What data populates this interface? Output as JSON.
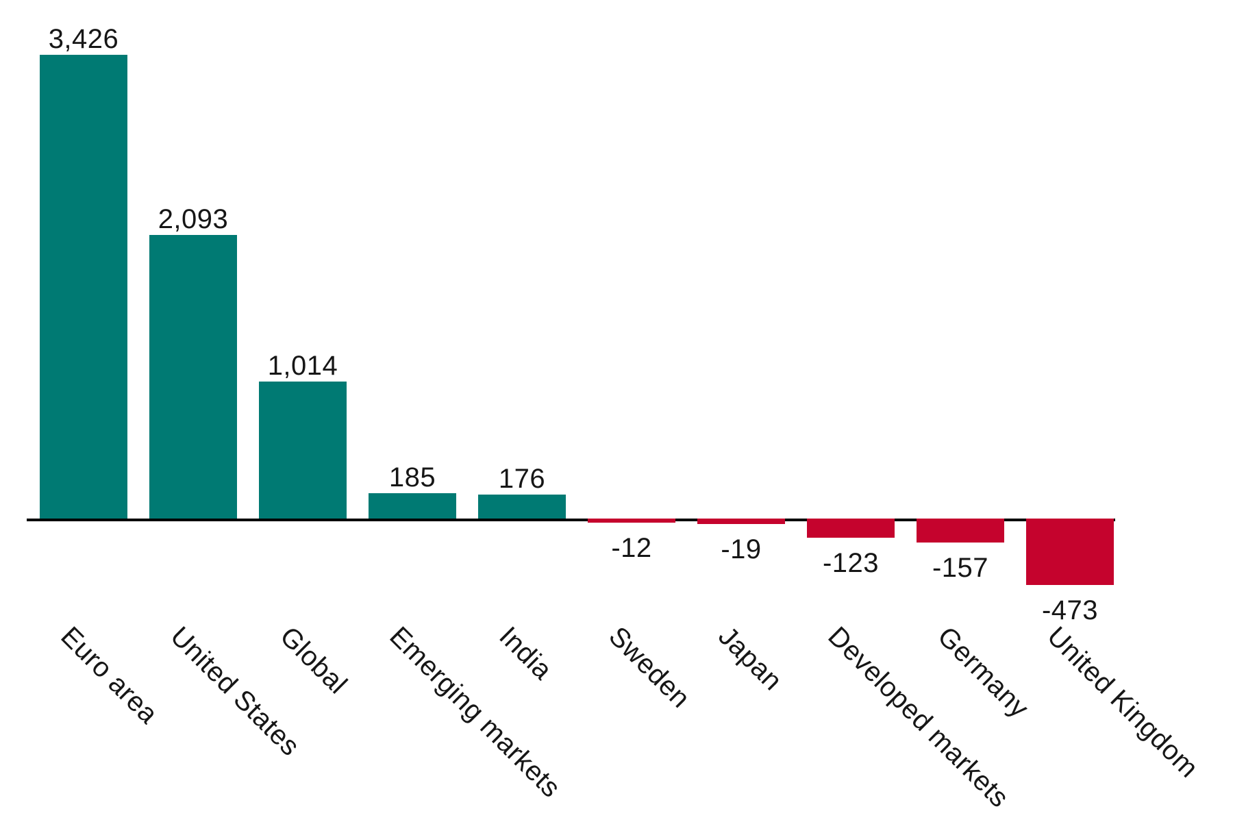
{
  "chart_data": {
    "type": "bar",
    "title": "",
    "xlabel": "",
    "ylabel": "",
    "categories": [
      "Euro area",
      "United States",
      "Global",
      "Emerging markets",
      "India",
      "Sweden",
      "Japan",
      "Developed markets",
      "Germany",
      "United Kingdom"
    ],
    "values": [
      3426,
      2093,
      1014,
      185,
      176,
      -12,
      -19,
      -123,
      -157,
      -473
    ],
    "value_labels": [
      "3,426",
      "2,093",
      "1,014",
      "185",
      "176",
      "-12",
      "-19",
      "-123",
      "-157",
      "-473"
    ],
    "ylim": [
      -473,
      3426
    ],
    "grid": false,
    "legend": false,
    "zero_baseline": true,
    "category_label_rotation_deg": 45,
    "colors": {
      "positive_bar": "#007a73",
      "negative_bar": "#c5032d",
      "axis_line": "#000000",
      "text": "#161616",
      "background": "#ffffff"
    }
  }
}
